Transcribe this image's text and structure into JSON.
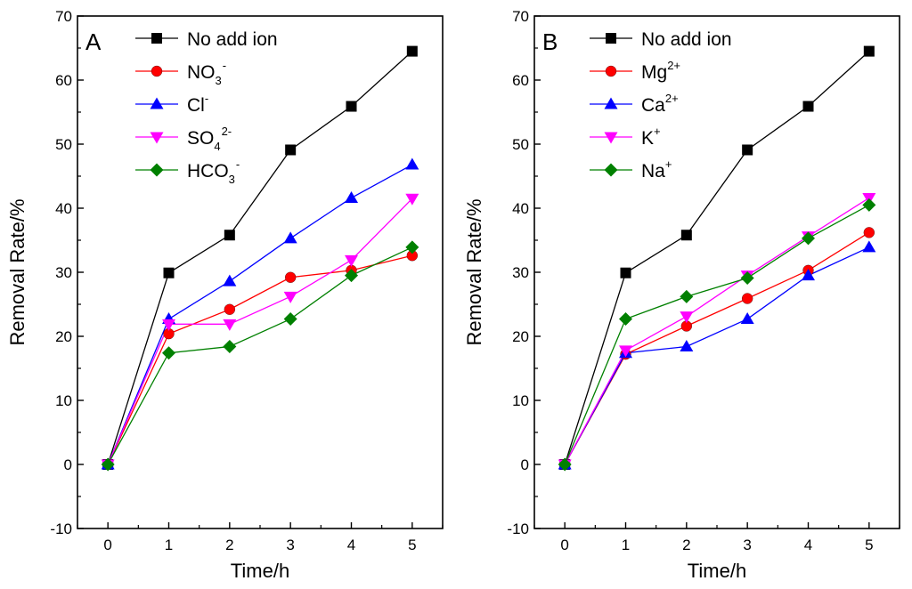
{
  "chart_data": [
    {
      "type": "line",
      "panel_label": "A",
      "xlabel": "Time/h",
      "ylabel": "Removal Rate/%",
      "x": [
        0,
        1,
        2,
        3,
        4,
        5
      ],
      "xlim": [
        -0.5,
        5.5
      ],
      "ylim": [
        -10,
        70
      ],
      "x_ticks": [
        "0",
        "1",
        "2",
        "3",
        "4",
        "5"
      ],
      "y_ticks": [
        "-10",
        "0",
        "10",
        "20",
        "30",
        "40",
        "50",
        "60",
        "70"
      ],
      "legend_position": "top-right",
      "series": [
        {
          "name": "No add ion",
          "label_main": "No add ion",
          "label_sup": "",
          "label_tail": "",
          "marker": "square",
          "color": "#000000",
          "values": [
            0,
            29.9,
            35.8,
            49.1,
            55.9,
            64.5
          ]
        },
        {
          "name": "NO3-",
          "label_main": "NO",
          "label_sub": "3",
          "label_sup": "-",
          "label_tail": "",
          "marker": "circle",
          "color": "#ff0000",
          "values": [
            0,
            20.4,
            24.2,
            29.2,
            30.3,
            32.6
          ]
        },
        {
          "name": "Cl-",
          "label_main": "Cl",
          "label_sub": "",
          "label_sup": "-",
          "label_tail": "",
          "marker": "triangle-up",
          "color": "#0000ff",
          "values": [
            0,
            22.7,
            28.6,
            35.3,
            41.6,
            46.8
          ]
        },
        {
          "name": "SO4 2-",
          "label_main": "SO",
          "label_sub": "4",
          "label_sup": "2-",
          "label_tail": "",
          "marker": "triangle-down",
          "color": "#ff00ff",
          "values": [
            0,
            21.9,
            21.9,
            26.2,
            31.9,
            41.5
          ]
        },
        {
          "name": "HCO3-",
          "label_main": "HCO",
          "label_sub": "3",
          "label_sup": "-",
          "label_tail": "",
          "marker": "diamond",
          "color": "#008000",
          "values": [
            0,
            17.4,
            18.4,
            22.7,
            29.5,
            33.9
          ]
        }
      ]
    },
    {
      "type": "line",
      "panel_label": "B",
      "xlabel": "Time/h",
      "ylabel": "Removal Rate/%",
      "x": [
        0,
        1,
        2,
        3,
        4,
        5
      ],
      "xlim": [
        -0.5,
        5.5
      ],
      "ylim": [
        -10,
        70
      ],
      "x_ticks": [
        "0",
        "1",
        "2",
        "3",
        "4",
        "5"
      ],
      "y_ticks": [
        "-10",
        "0",
        "10",
        "20",
        "30",
        "40",
        "50",
        "60",
        "70"
      ],
      "legend_position": "top-right",
      "series": [
        {
          "name": "No add ion",
          "label_main": "No add ion",
          "label_sub": "",
          "label_sup": "",
          "label_tail": "",
          "marker": "square",
          "color": "#000000",
          "values": [
            0,
            29.9,
            35.8,
            49.1,
            55.9,
            64.5
          ]
        },
        {
          "name": "Mg2+",
          "label_main": "Mg",
          "label_sub": "",
          "label_sup": "2+",
          "label_tail": "",
          "marker": "circle",
          "color": "#ff0000",
          "values": [
            0,
            17.2,
            21.6,
            25.9,
            30.3,
            36.2
          ]
        },
        {
          "name": "Ca2+",
          "label_main": "Ca",
          "label_sub": "",
          "label_sup": "2+",
          "label_tail": "",
          "marker": "triangle-up",
          "color": "#0000ff",
          "values": [
            0,
            17.4,
            18.4,
            22.7,
            29.5,
            33.9
          ]
        },
        {
          "name": "K+",
          "label_main": "K",
          "label_sub": "",
          "label_sup": "+",
          "label_tail": "",
          "marker": "triangle-down",
          "color": "#ff00ff",
          "values": [
            0,
            17.8,
            23.1,
            29.5,
            35.6,
            41.6
          ]
        },
        {
          "name": "Na+",
          "label_main": "Na",
          "label_sub": "",
          "label_sup": "+",
          "label_tail": "",
          "marker": "diamond",
          "color": "#008000",
          "values": [
            0,
            22.7,
            26.2,
            29.1,
            35.3,
            40.5
          ]
        }
      ]
    }
  ]
}
